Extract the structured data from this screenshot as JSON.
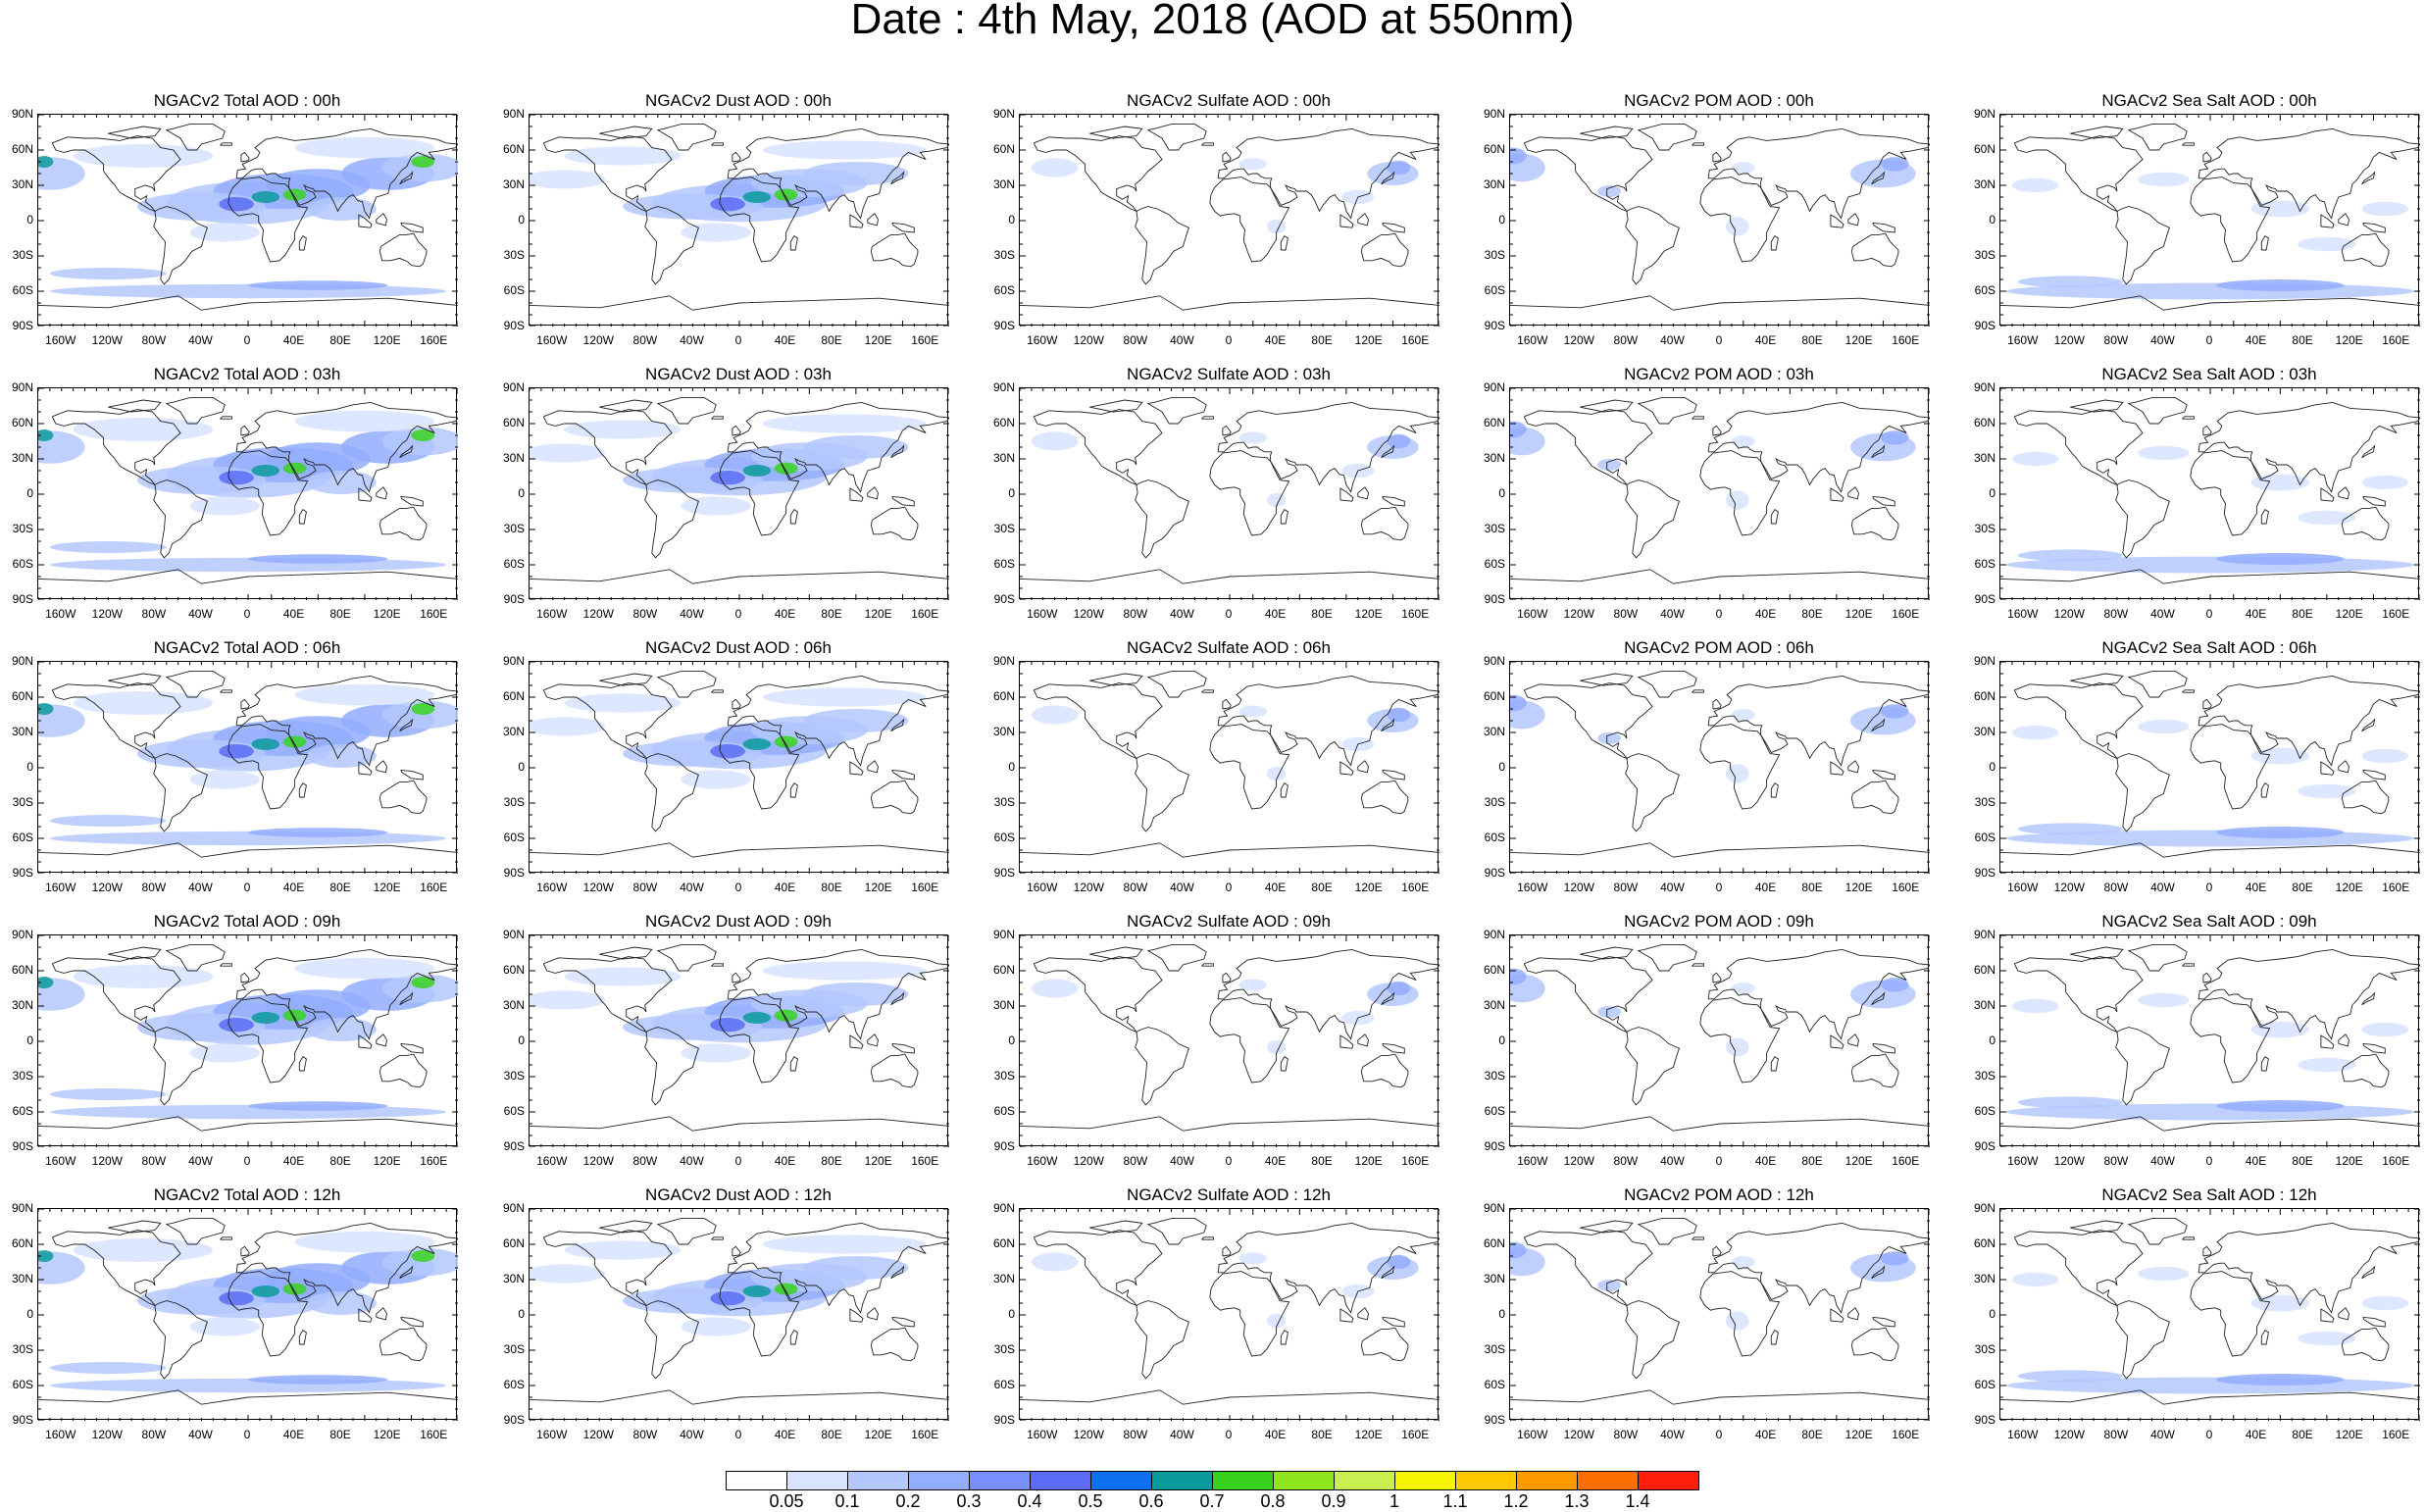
{
  "title": "Date : 4th May, 2018 (AOD at 550nm)",
  "lat_labels": [
    "90N",
    "60N",
    "30N",
    "0",
    "30S",
    "60S",
    "90S"
  ],
  "lon_labels": [
    "160W",
    "120W",
    "80W",
    "40W",
    "0",
    "40E",
    "80E",
    "120E",
    "160E"
  ],
  "panels": [
    [
      "NGACv2 Total AOD : 00h",
      "NGACv2 Dust AOD : 00h",
      "NGACv2 Sulfate AOD : 00h",
      "NGACv2 POM AOD : 00h",
      "NGACv2 Sea Salt AOD : 00h"
    ],
    [
      "NGACv2 Total AOD : 03h",
      "NGACv2 Dust AOD : 03h",
      "NGACv2 Sulfate AOD : 03h",
      "NGACv2 POM AOD : 03h",
      "NGACv2 Sea Salt AOD : 03h"
    ],
    [
      "NGACv2 Total AOD : 06h",
      "NGACv2 Dust AOD : 06h",
      "NGACv2 Sulfate AOD : 06h",
      "NGACv2 POM AOD : 06h",
      "NGACv2 Sea Salt AOD : 06h"
    ],
    [
      "NGACv2 Total AOD : 09h",
      "NGACv2 Dust AOD : 09h",
      "NGACv2 Sulfate AOD : 09h",
      "NGACv2 POM AOD : 09h",
      "NGACv2 Sea Salt  AOD : 09h"
    ],
    [
      "NGACv2 Total AOD  : 12h",
      "NGACv2 Dust AOD : 12h",
      "NGACv2 Sulfate AOD : 12h",
      "NGACv2 POM  AOD : 12h",
      "NGACv2 Sea Salt AOD : 12h"
    ]
  ],
  "colorbar": {
    "labels": [
      "0.05",
      "0.1",
      "0.2",
      "0.3",
      "0.4",
      "0.5",
      "0.6",
      "0.7",
      "0.8",
      "0.9",
      "1",
      "1.1",
      "1.2",
      "1.3",
      "1.4"
    ],
    "colors": [
      "#ffffff",
      "#d7e3ff",
      "#b4c8ff",
      "#93adff",
      "#7b90ff",
      "#5a6cf5",
      "#0e6ff0",
      "#0a9b9b",
      "#38d21e",
      "#90e61e",
      "#c8f050",
      "#f5f500",
      "#ffc800",
      "#ff9b00",
      "#ff6e00",
      "#ff1e0a"
    ]
  }
}
